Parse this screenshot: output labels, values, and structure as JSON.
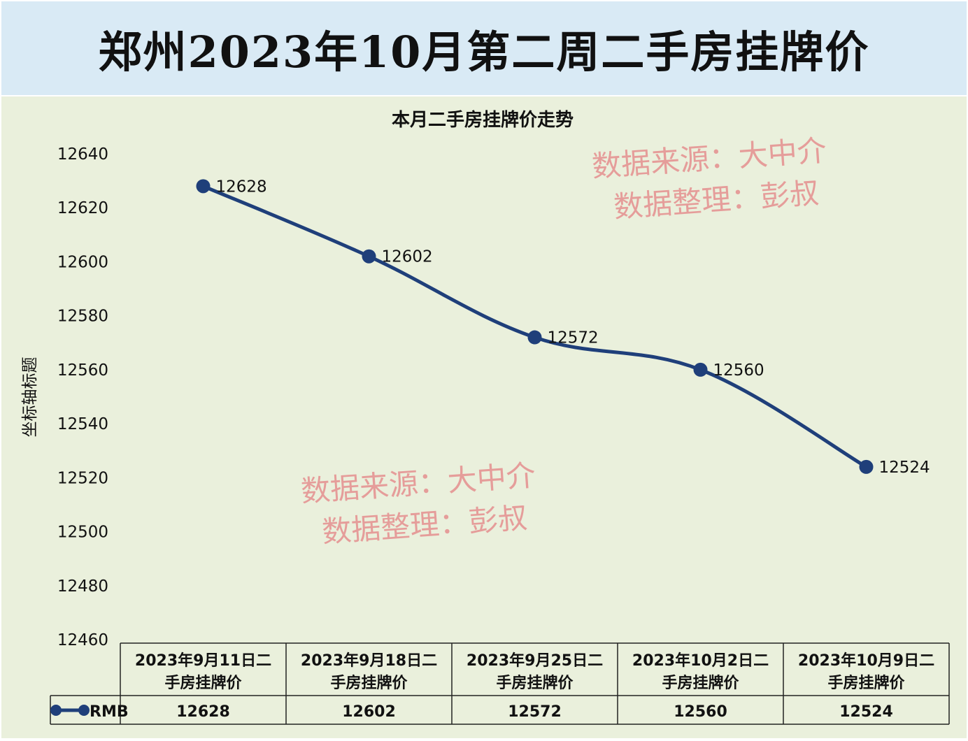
{
  "header": {
    "title": "郑州2023年10月第二周二手房挂牌价"
  },
  "watermarks": [
    {
      "line1": "数据来源：大中介",
      "line2": "数据整理：彭叔"
    },
    {
      "line1": "数据来源：大中介",
      "line2": "数据整理：彭叔"
    }
  ],
  "colors": {
    "line": "#1f3f7a",
    "banner": "#d9eaf5",
    "plot_bg": "#eaf0dc",
    "watermark": "#e58f8f"
  },
  "chart_data": {
    "type": "line",
    "title": "本月二手房挂牌价走势",
    "ylabel": "坐标轴标题",
    "xlabel": "",
    "ylim": [
      12460,
      12640
    ],
    "yticks": [
      12640,
      12620,
      12600,
      12580,
      12560,
      12540,
      12520,
      12500,
      12480,
      12460
    ],
    "categories": [
      [
        "2023年9月11日二",
        "手房挂牌价"
      ],
      [
        "2023年9月18日二",
        "手房挂牌价"
      ],
      [
        "2023年9月25日二",
        "手房挂牌价"
      ],
      [
        "2023年10月2日二",
        "手房挂牌价"
      ],
      [
        "2023年10月9日二",
        "手房挂牌价"
      ]
    ],
    "series": [
      {
        "name": "RMB",
        "values": [
          12628,
          12602,
          12572,
          12560,
          12524
        ]
      }
    ],
    "legend": "data-table"
  }
}
